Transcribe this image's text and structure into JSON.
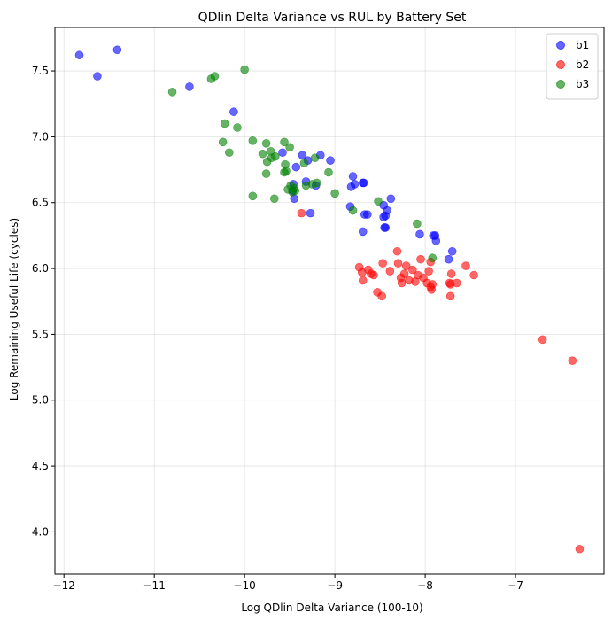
{
  "chart_data": {
    "type": "scatter",
    "title": "QDlin Delta Variance vs RUL by Battery Set",
    "xlabel": "Log QDlin Delta Variance (100-10)",
    "ylabel": "Log Remaining Useful Life (cycles)",
    "xlim": [
      -12.1,
      -6.02
    ],
    "ylim": [
      3.68,
      7.83
    ],
    "xticks": [
      -12,
      -11,
      -10,
      -9,
      -8,
      -7
    ],
    "yticks": [
      4.0,
      4.5,
      5.0,
      5.5,
      6.0,
      6.5,
      7.0,
      7.5
    ],
    "xtick_labels": [
      "−12",
      "−11",
      "−10",
      "−9",
      "−8",
      "−7"
    ],
    "ytick_labels": [
      "4.0",
      "4.5",
      "5.0",
      "5.5",
      "6.0",
      "6.5",
      "7.0",
      "7.5"
    ],
    "grid": true,
    "legend": "top-right",
    "series": [
      {
        "name": "b1",
        "color": "#0000ff",
        "points": [
          [
            -11.83,
            7.62
          ],
          [
            -11.63,
            7.46
          ],
          [
            -11.41,
            7.66
          ],
          [
            -10.61,
            7.38
          ],
          [
            -10.12,
            7.19
          ],
          [
            -9.58,
            6.88
          ],
          [
            -9.43,
            6.77
          ],
          [
            -9.36,
            6.86
          ],
          [
            -9.32,
            6.66
          ],
          [
            -9.3,
            6.82
          ],
          [
            -9.21,
            6.63
          ],
          [
            -9.16,
            6.86
          ],
          [
            -9.05,
            6.82
          ],
          [
            -9.47,
            6.59
          ],
          [
            -9.46,
            6.64
          ],
          [
            -9.45,
            6.53
          ],
          [
            -9.27,
            6.42
          ],
          [
            -8.82,
            6.62
          ],
          [
            -8.8,
            6.7
          ],
          [
            -8.78,
            6.64
          ],
          [
            -8.68,
            6.65
          ],
          [
            -8.69,
            6.65
          ],
          [
            -8.67,
            6.41
          ],
          [
            -8.64,
            6.41
          ],
          [
            -8.69,
            6.28
          ],
          [
            -8.83,
            6.47
          ],
          [
            -8.46,
            6.48
          ],
          [
            -8.44,
            6.4
          ],
          [
            -8.42,
            6.44
          ],
          [
            -8.46,
            6.39
          ],
          [
            -8.38,
            6.53
          ],
          [
            -8.44,
            6.31
          ],
          [
            -8.45,
            6.31
          ],
          [
            -8.06,
            6.26
          ],
          [
            -7.89,
            6.25
          ],
          [
            -7.88,
            6.21
          ],
          [
            -7.91,
            6.25
          ],
          [
            -7.7,
            6.13
          ],
          [
            -7.74,
            6.07
          ]
        ]
      },
      {
        "name": "b2",
        "color": "#ff0000",
        "points": [
          [
            -9.37,
            6.42
          ],
          [
            -8.73,
            6.01
          ],
          [
            -8.7,
            5.97
          ],
          [
            -8.69,
            5.91
          ],
          [
            -8.63,
            5.99
          ],
          [
            -8.6,
            5.96
          ],
          [
            -8.57,
            5.95
          ],
          [
            -8.53,
            5.82
          ],
          [
            -8.47,
            6.04
          ],
          [
            -8.48,
            5.79
          ],
          [
            -8.39,
            5.98
          ],
          [
            -8.31,
            6.13
          ],
          [
            -8.3,
            6.04
          ],
          [
            -8.27,
            5.93
          ],
          [
            -8.26,
            5.89
          ],
          [
            -8.23,
            5.96
          ],
          [
            -8.21,
            6.02
          ],
          [
            -8.18,
            5.91
          ],
          [
            -8.14,
            5.99
          ],
          [
            -8.11,
            5.9
          ],
          [
            -8.08,
            5.95
          ],
          [
            -8.05,
            6.07
          ],
          [
            -8.02,
            5.93
          ],
          [
            -7.98,
            5.89
          ],
          [
            -7.96,
            5.98
          ],
          [
            -7.94,
            5.86
          ],
          [
            -7.93,
            5.84
          ],
          [
            -7.92,
            5.88
          ],
          [
            -7.94,
            6.05
          ],
          [
            -7.73,
            5.89
          ],
          [
            -7.72,
            5.88
          ],
          [
            -7.71,
            5.96
          ],
          [
            -7.72,
            5.79
          ],
          [
            -7.65,
            5.89
          ],
          [
            -7.55,
            6.02
          ],
          [
            -7.46,
            5.95
          ],
          [
            -6.7,
            5.46
          ],
          [
            -6.37,
            5.3
          ],
          [
            -6.29,
            3.87
          ]
        ]
      },
      {
        "name": "b3",
        "color": "#008000",
        "points": [
          [
            -10.8,
            7.34
          ],
          [
            -10.37,
            7.44
          ],
          [
            -10.33,
            7.46
          ],
          [
            -10.0,
            7.51
          ],
          [
            -10.22,
            7.1
          ],
          [
            -10.08,
            7.07
          ],
          [
            -10.24,
            6.96
          ],
          [
            -10.17,
            6.88
          ],
          [
            -9.91,
            6.97
          ],
          [
            -9.76,
            6.95
          ],
          [
            -9.71,
            6.89
          ],
          [
            -9.66,
            6.85
          ],
          [
            -9.56,
            6.96
          ],
          [
            -9.5,
            6.92
          ],
          [
            -9.8,
            6.87
          ],
          [
            -9.75,
            6.81
          ],
          [
            -9.7,
            6.84
          ],
          [
            -9.55,
            6.79
          ],
          [
            -9.54,
            6.74
          ],
          [
            -9.56,
            6.73
          ],
          [
            -9.34,
            6.8
          ],
          [
            -9.22,
            6.84
          ],
          [
            -9.07,
            6.73
          ],
          [
            -9.76,
            6.72
          ],
          [
            -9.91,
            6.55
          ],
          [
            -9.67,
            6.53
          ],
          [
            -9.52,
            6.6
          ],
          [
            -9.47,
            6.58
          ],
          [
            -9.45,
            6.61
          ],
          [
            -9.44,
            6.59
          ],
          [
            -9.32,
            6.63
          ],
          [
            -9.25,
            6.64
          ],
          [
            -9.2,
            6.65
          ],
          [
            -9.49,
            6.63
          ],
          [
            -9.0,
            6.57
          ],
          [
            -8.8,
            6.44
          ],
          [
            -8.52,
            6.51
          ],
          [
            -8.09,
            6.34
          ],
          [
            -7.92,
            6.08
          ]
        ]
      }
    ]
  }
}
